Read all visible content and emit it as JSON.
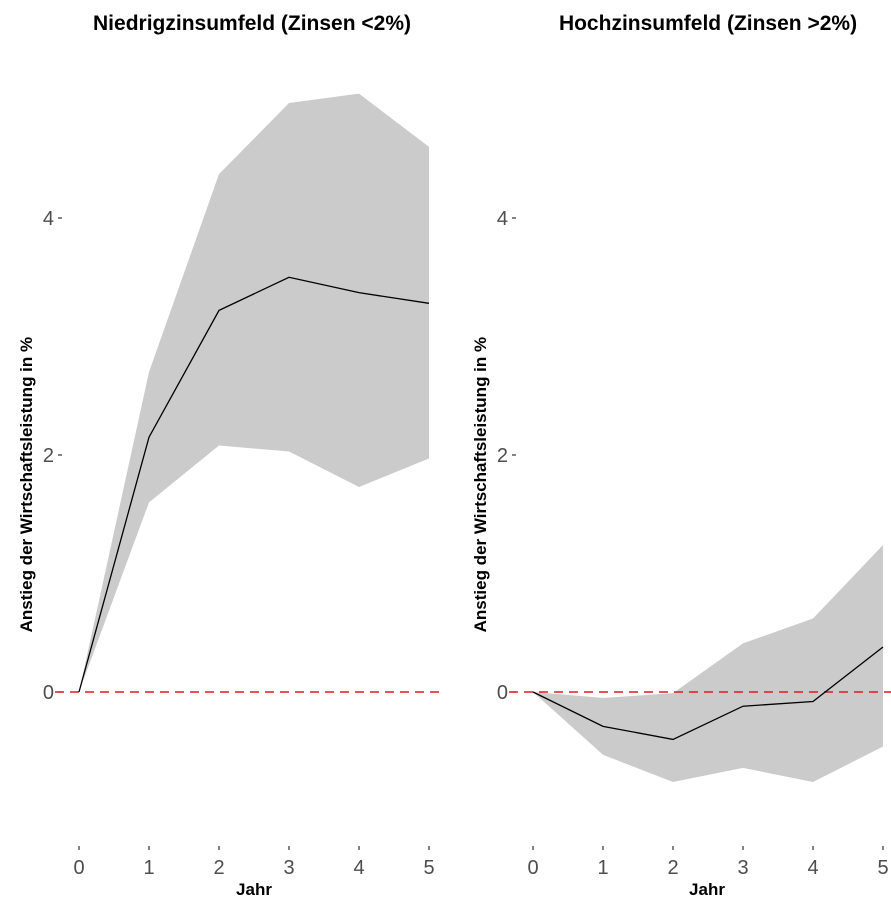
{
  "chart_data": [
    {
      "type": "line",
      "title": "Niedrigzinsumfeld (Zinsen <2%)",
      "xlabel": "Jahr",
      "ylabel": "Anstieg der Wirtschaftsleistung in %",
      "x": [
        0,
        1,
        2,
        3,
        4,
        5
      ],
      "x_ticks": [
        "0",
        "1",
        "2",
        "3",
        "4",
        "5"
      ],
      "y_ticks": [
        "0",
        "2",
        "4"
      ],
      "ylim": [
        -1.45,
        5.2
      ],
      "series": [
        {
          "values": [
            0,
            2.15,
            3.22,
            3.5,
            3.37,
            3.28
          ],
          "color": "#000000"
        }
      ],
      "band_upper": [
        0,
        2.7,
        4.37,
        4.97,
        5.05,
        4.6
      ],
      "band_lower": [
        0,
        1.6,
        2.08,
        2.03,
        1.73,
        1.97
      ],
      "band_color": "#cbcbcb",
      "reference_line": {
        "y": 0,
        "color": "#e31a1c",
        "style": "dashed"
      },
      "grid": false
    },
    {
      "type": "line",
      "title": "Hochzinsumfeld (Zinsen >2%)",
      "xlabel": "Jahr",
      "ylabel": "Anstieg der Wirtschaftsleistung in %",
      "x": [
        0,
        1,
        2,
        3,
        4,
        5
      ],
      "x_ticks": [
        "0",
        "1",
        "2",
        "3",
        "4",
        "5"
      ],
      "y_ticks": [
        "0",
        "2",
        "4"
      ],
      "ylim": [
        -1.45,
        5.2
      ],
      "series": [
        {
          "values": [
            0,
            -0.29,
            -0.4,
            -0.12,
            -0.08,
            0.38
          ],
          "color": "#000000"
        }
      ],
      "band_upper": [
        0,
        -0.05,
        -0.01,
        0.41,
        0.62,
        1.24
      ],
      "band_lower": [
        0,
        -0.53,
        -0.76,
        -0.64,
        -0.76,
        -0.46
      ],
      "band_color": "#cbcbcb",
      "reference_line": {
        "y": 0,
        "color": "#e31a1c",
        "style": "dashed"
      },
      "grid": false
    }
  ]
}
